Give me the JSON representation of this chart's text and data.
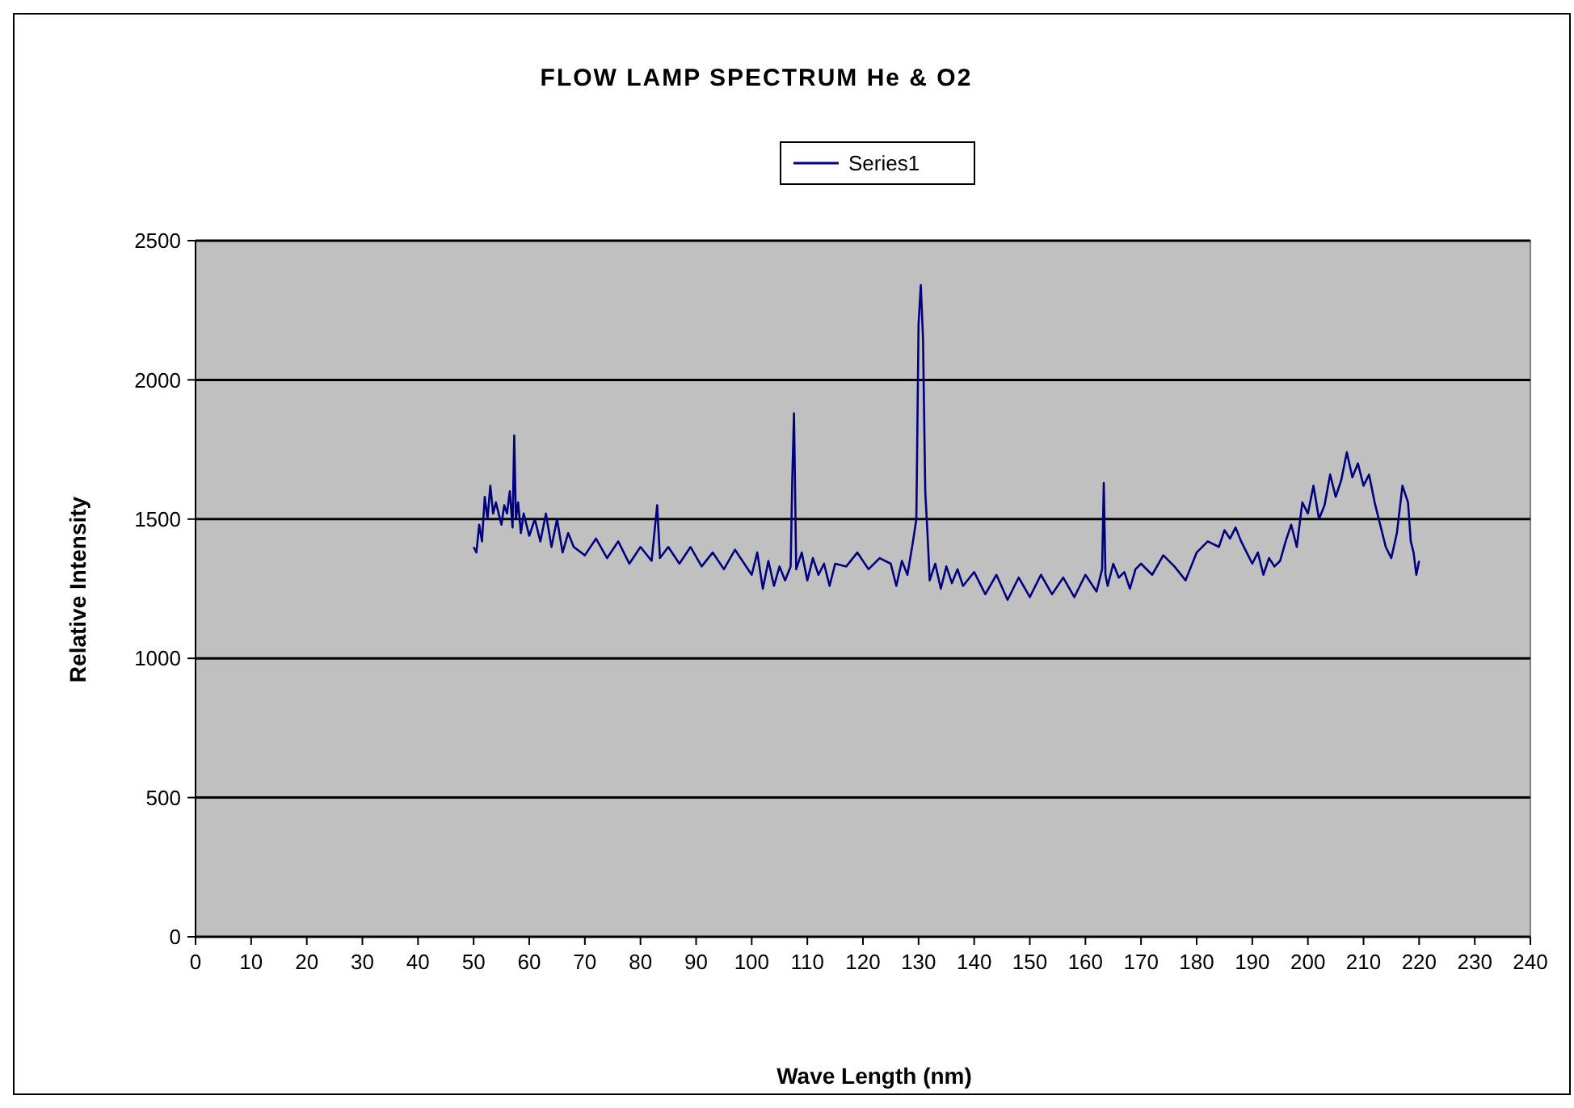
{
  "chart_data": {
    "type": "line",
    "title": "FLOW LAMP SPECTRUM He & O2",
    "xlabel": "Wave Length (nm)",
    "ylabel": "Relative Intensity",
    "xlim": [
      0,
      240
    ],
    "xticks": [
      0,
      10,
      20,
      30,
      40,
      50,
      60,
      70,
      80,
      90,
      100,
      110,
      120,
      130,
      140,
      150,
      160,
      170,
      180,
      190,
      200,
      210,
      220,
      230,
      240
    ],
    "ylim": [
      0,
      2500
    ],
    "yticks": [
      0,
      500,
      1000,
      1500,
      2000,
      2500
    ],
    "grid": "y",
    "legend": "top",
    "marker": "none",
    "series": [
      {
        "name": "Series1",
        "color": "#000080",
        "x": [
          50,
          50.5,
          51,
          51.5,
          52,
          52.5,
          53,
          53.5,
          54,
          55,
          55.5,
          56,
          56.5,
          57,
          57.3,
          57.6,
          58,
          58.5,
          59,
          60,
          61,
          62,
          63,
          64,
          65,
          66,
          67,
          68,
          70,
          72,
          74,
          76,
          78,
          80,
          82,
          83,
          83.5,
          85,
          87,
          89,
          91,
          93,
          95,
          97,
          99,
          100,
          101,
          102,
          103,
          104,
          105,
          106,
          107,
          107.3,
          107.6,
          108,
          109,
          110,
          111,
          112,
          113,
          114,
          115,
          117,
          119,
          121,
          123,
          125,
          126,
          127,
          128,
          129,
          129.6,
          130,
          130.4,
          130.8,
          131.2,
          131.6,
          132,
          133,
          134,
          135,
          136,
          137,
          138,
          140,
          142,
          144,
          146,
          148,
          150,
          152,
          154,
          156,
          158,
          160,
          162,
          163,
          163.3,
          163.6,
          164,
          165,
          166,
          167,
          168,
          169,
          170,
          172,
          174,
          176,
          178,
          179,
          180,
          182,
          184,
          185,
          186,
          187,
          188,
          189,
          190,
          191,
          192,
          193,
          194,
          195,
          196,
          197,
          198,
          199,
          200,
          201,
          202,
          203,
          204,
          205,
          206,
          207,
          208,
          209,
          210,
          211,
          212,
          213,
          214,
          215,
          216,
          217,
          218,
          218.5,
          219,
          219.5,
          220
        ],
        "values": [
          1400,
          1380,
          1480,
          1420,
          1580,
          1500,
          1620,
          1520,
          1560,
          1480,
          1550,
          1520,
          1600,
          1470,
          1800,
          1500,
          1560,
          1450,
          1520,
          1440,
          1500,
          1420,
          1520,
          1400,
          1500,
          1380,
          1450,
          1400,
          1370,
          1430,
          1360,
          1420,
          1340,
          1400,
          1350,
          1550,
          1360,
          1400,
          1340,
          1400,
          1330,
          1380,
          1320,
          1390,
          1330,
          1300,
          1380,
          1250,
          1350,
          1260,
          1330,
          1280,
          1330,
          1650,
          1880,
          1320,
          1380,
          1280,
          1360,
          1300,
          1340,
          1260,
          1340,
          1330,
          1380,
          1320,
          1360,
          1340,
          1260,
          1350,
          1300,
          1420,
          1500,
          2200,
          2340,
          2150,
          1600,
          1450,
          1280,
          1340,
          1250,
          1330,
          1270,
          1320,
          1260,
          1310,
          1230,
          1300,
          1210,
          1290,
          1220,
          1300,
          1230,
          1290,
          1220,
          1300,
          1240,
          1320,
          1630,
          1300,
          1260,
          1340,
          1290,
          1310,
          1250,
          1320,
          1340,
          1300,
          1370,
          1330,
          1280,
          1330,
          1380,
          1420,
          1400,
          1460,
          1430,
          1470,
          1420,
          1380,
          1340,
          1380,
          1300,
          1360,
          1330,
          1350,
          1420,
          1480,
          1400,
          1560,
          1520,
          1620,
          1500,
          1550,
          1660,
          1580,
          1640,
          1740,
          1650,
          1700,
          1620,
          1660,
          1560,
          1480,
          1400,
          1360,
          1450,
          1620,
          1560,
          1420,
          1380,
          1300,
          1350
        ]
      }
    ]
  }
}
